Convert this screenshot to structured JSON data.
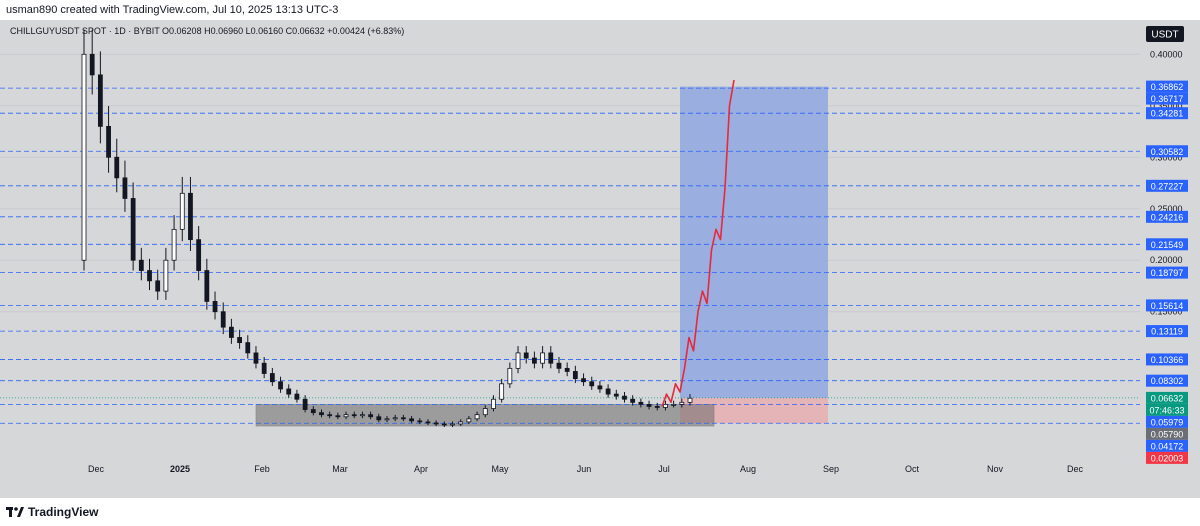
{
  "header": {
    "credit": "usman890 created with TradingView.com, Jul 10, 2025 13:13 UTC-3"
  },
  "legend": {
    "line": "CHILLGUYUSDT SPOT · 1D · BYBIT  O0.06208  H0.06960  L0.06160  C0.06632  +0.00424 (+6.83%)"
  },
  "currency_button": "USDT",
  "colors": {
    "background": "#d6d7d9",
    "candle": "#131722",
    "level_line": "#2962ff",
    "target_zone": "#8fa8e0",
    "stop_zone": "#e8aeb0",
    "consolidation_box": "#6d6d6d",
    "projection": "#e8283c",
    "badge_blue": "#2962ff",
    "badge_green": "#089981",
    "badge_gray": "#6b6e75",
    "badge_red": "#f23645"
  },
  "footer": {
    "brand": "TradingView"
  },
  "chart_data": {
    "type": "candlestick",
    "title": "CHILLGUYUSDT SPOT · 1D · BYBIT",
    "ylim": [
      0.006,
      0.41
    ],
    "y_tick_labels": [
      "0.40000",
      "0.35000",
      "0.30000",
      "0.25000",
      "0.20000",
      "0.15000"
    ],
    "x_tick_labels": [
      "Dec",
      "2025",
      "Feb",
      "Mar",
      "Apr",
      "May",
      "Jun",
      "Jul",
      "Aug",
      "Sep",
      "Oct",
      "Nov",
      "Dec"
    ],
    "ohlc_last": {
      "open": 0.06208,
      "high": 0.0696,
      "low": 0.0616,
      "close": 0.06632,
      "change": 0.00424,
      "change_pct": 6.83
    },
    "countdown": "07:46:33",
    "price_levels": [
      0.36717,
      0.34281,
      0.30582,
      0.27227,
      0.24216,
      0.21549,
      0.18797,
      0.15614,
      0.13119,
      0.10366,
      0.08302,
      0.05979,
      0.04172
    ],
    "badges": [
      {
        "value": "0.36862",
        "color": "blue"
      },
      {
        "value": "0.36717",
        "color": "blue"
      },
      {
        "value": "0.34281",
        "color": "blue"
      },
      {
        "value": "0.30582",
        "color": "blue"
      },
      {
        "value": "0.27227",
        "color": "blue"
      },
      {
        "value": "0.24216",
        "color": "blue"
      },
      {
        "value": "0.21549",
        "color": "blue"
      },
      {
        "value": "0.18797",
        "color": "blue"
      },
      {
        "value": "0.15614",
        "color": "blue"
      },
      {
        "value": "0.13119",
        "color": "blue"
      },
      {
        "value": "0.10366",
        "color": "blue"
      },
      {
        "value": "0.08302",
        "color": "blue"
      },
      {
        "value": "0.06632",
        "color": "green"
      },
      {
        "value": "0.05979",
        "color": "blue"
      },
      {
        "value": "0.05790",
        "color": "gray"
      },
      {
        "value": "0.04172",
        "color": "blue"
      },
      {
        "value": "0.02003",
        "color": "red"
      }
    ],
    "candles_close": [
      0.4,
      0.38,
      0.33,
      0.3,
      0.28,
      0.26,
      0.2,
      0.19,
      0.18,
      0.17,
      0.2,
      0.23,
      0.265,
      0.22,
      0.19,
      0.16,
      0.15,
      0.135,
      0.125,
      0.12,
      0.11,
      0.1,
      0.09,
      0.082,
      0.075,
      0.07,
      0.065,
      0.055,
      0.052,
      0.05,
      0.049,
      0.048,
      0.05,
      0.049,
      0.05,
      0.048,
      0.045,
      0.046,
      0.047,
      0.046,
      0.044,
      0.043,
      0.042,
      0.041,
      0.04,
      0.041,
      0.043,
      0.046,
      0.05,
      0.056,
      0.065,
      0.08,
      0.095,
      0.11,
      0.105,
      0.1,
      0.11,
      0.1,
      0.095,
      0.092,
      0.085,
      0.082,
      0.078,
      0.075,
      0.07,
      0.068,
      0.065,
      0.062,
      0.06,
      0.058,
      0.057,
      0.06,
      0.06,
      0.062,
      0.066
    ],
    "projection_path": [
      0.058,
      0.07,
      0.062,
      0.08,
      0.072,
      0.095,
      0.125,
      0.112,
      0.15,
      0.17,
      0.158,
      0.21,
      0.23,
      0.22,
      0.27,
      0.35,
      0.375
    ],
    "consolidation_range": [
      0.039,
      0.06
    ],
    "target_zone": [
      0.0663,
      0.3686
    ],
    "stop_zone": [
      0.0415,
      0.0663
    ]
  }
}
